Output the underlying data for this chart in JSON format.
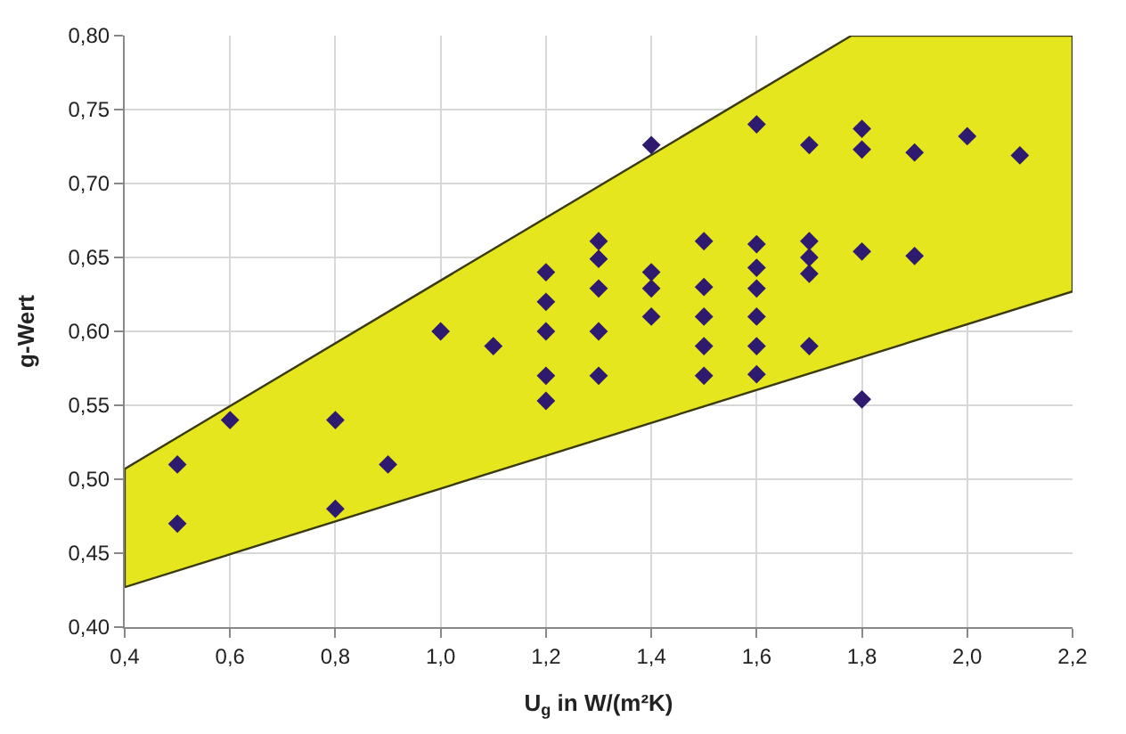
{
  "chart_data": {
    "type": "scatter",
    "xlabel": "U$_{g}$ in W/(m²K)",
    "ylabel": "g-Wert",
    "xlim": [
      0.4,
      2.2
    ],
    "ylim": [
      0.4,
      0.8
    ],
    "xticks": [
      {
        "value": 0.4,
        "label": "0,4"
      },
      {
        "value": 0.6,
        "label": "0,6"
      },
      {
        "value": 0.8,
        "label": "0,8"
      },
      {
        "value": 1.0,
        "label": "1,0"
      },
      {
        "value": 1.2,
        "label": "1,2"
      },
      {
        "value": 1.4,
        "label": "1,4"
      },
      {
        "value": 1.6,
        "label": "1,6"
      },
      {
        "value": 1.8,
        "label": "1,8"
      },
      {
        "value": 2.0,
        "label": "2,0"
      },
      {
        "value": 2.2,
        "label": "2,2"
      }
    ],
    "yticks": [
      {
        "value": 0.4,
        "label": "0,40"
      },
      {
        "value": 0.45,
        "label": "0,45"
      },
      {
        "value": 0.5,
        "label": "0,50"
      },
      {
        "value": 0.55,
        "label": "0,55"
      },
      {
        "value": 0.6,
        "label": "0,60"
      },
      {
        "value": 0.65,
        "label": "0,65"
      },
      {
        "value": 0.7,
        "label": "0,70"
      },
      {
        "value": 0.75,
        "label": "0,75"
      },
      {
        "value": 0.8,
        "label": "0,80"
      }
    ],
    "grid": true,
    "marker": "diamond",
    "series": [
      {
        "type": "line",
        "marker": "none",
        "color": "#3a3a10",
        "x": [
          0.4,
          2.2
        ],
        "values": [
          0.427,
          0.627
        ]
      },
      {
        "type": "area",
        "marker": "none",
        "color": "#e6e61e",
        "x": [
          0.4,
          1.78,
          2.2
        ],
        "values": [
          0.507,
          0.8,
          0.8
        ]
      },
      {
        "color": "#2e1a6e",
        "x": [
          0.5,
          0.5,
          0.6,
          0.8,
          0.8,
          0.9,
          1.0,
          1.1,
          1.2,
          1.2,
          1.2,
          1.2,
          1.2,
          1.3,
          1.3,
          1.3,
          1.3,
          1.3,
          1.4,
          1.4,
          1.4,
          1.4,
          1.5,
          1.5,
          1.5,
          1.5,
          1.5,
          1.6,
          1.6,
          1.6,
          1.6,
          1.6,
          1.6,
          1.6,
          1.7,
          1.7,
          1.7,
          1.7,
          1.7,
          1.8,
          1.8,
          1.8,
          1.8,
          1.9,
          1.9,
          2.0,
          2.1
        ],
        "values": [
          0.51,
          0.47,
          0.54,
          0.54,
          0.48,
          0.51,
          0.6,
          0.59,
          0.64,
          0.62,
          0.6,
          0.57,
          0.553,
          0.661,
          0.649,
          0.629,
          0.6,
          0.57,
          0.726,
          0.64,
          0.629,
          0.61,
          0.661,
          0.63,
          0.61,
          0.59,
          0.57,
          0.74,
          0.659,
          0.643,
          0.629,
          0.61,
          0.59,
          0.571,
          0.726,
          0.661,
          0.65,
          0.639,
          0.59,
          0.737,
          0.723,
          0.654,
          0.554,
          0.721,
          0.651,
          0.732,
          0.719
        ]
      }
    ]
  }
}
